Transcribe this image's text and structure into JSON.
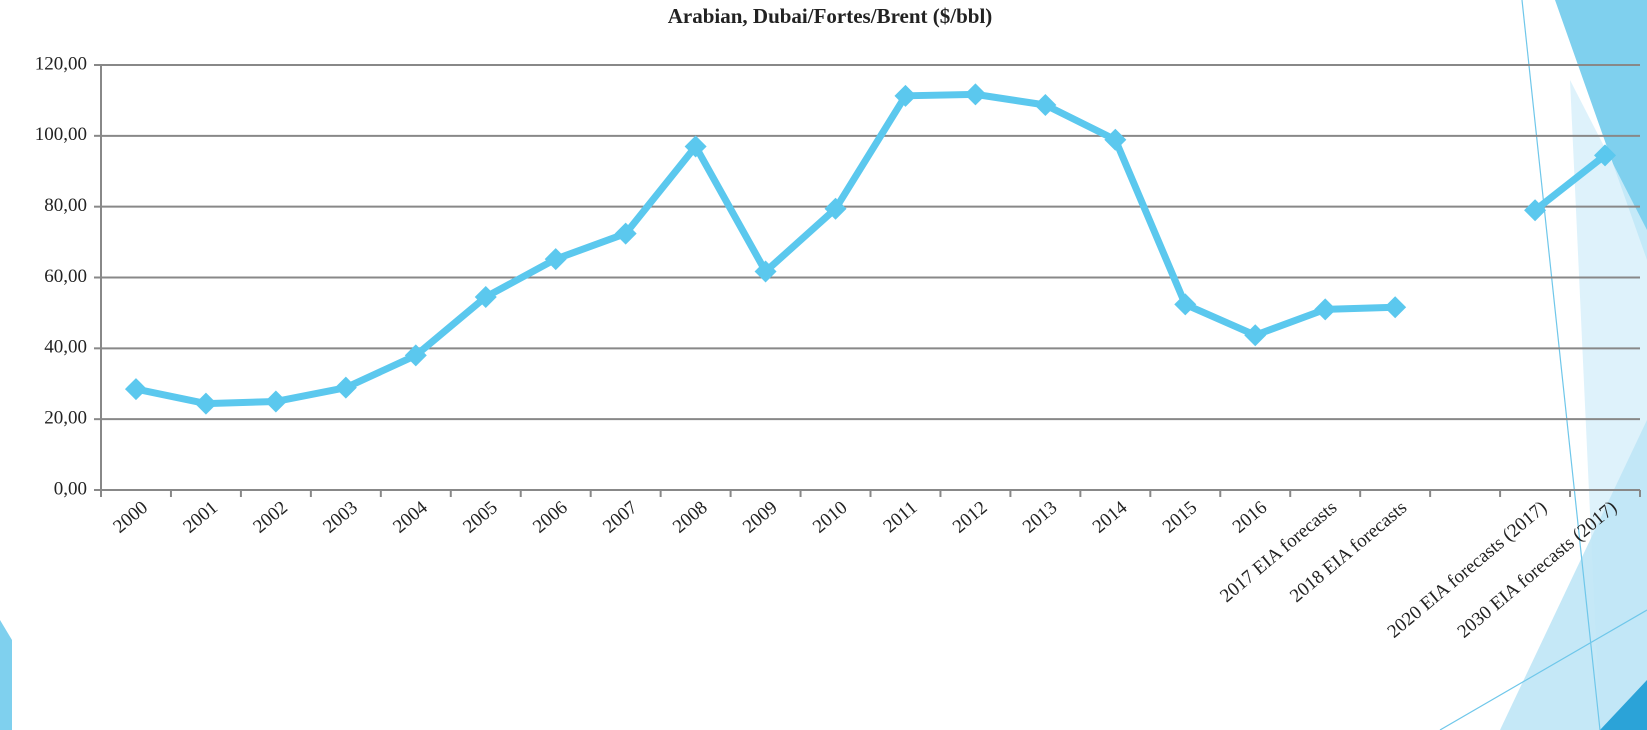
{
  "chart_data": {
    "type": "line",
    "title": "Arabian, Dubai/Fortes/Brent ($/bbl)",
    "categories": [
      "2000",
      "2001",
      "2002",
      "2003",
      "2004",
      "2005",
      "2006",
      "2007",
      "2008",
      "2009",
      "2010",
      "2011",
      "2012",
      "2013",
      "2014",
      "2015",
      "2016",
      "2017 EIA forecasts",
      "2018 EIA forecasts",
      null,
      "2020 EIA forecasts (2017)",
      "2030 EIA forecasts (2017)"
    ],
    "series": [
      {
        "color": "#5bc8ee",
        "values": [
          28.5,
          24.4,
          25.0,
          28.9,
          38.0,
          54.5,
          65.2,
          72.4,
          97.0,
          61.7,
          79.4,
          111.3,
          111.7,
          108.7,
          98.9,
          52.4,
          43.7,
          51.0,
          51.6,
          null,
          79.0,
          94.5
        ]
      }
    ],
    "ylim": [
      0,
      120
    ],
    "yticks": [
      {
        "value": 0,
        "label": "0,00"
      },
      {
        "value": 20,
        "label": "20,00"
      },
      {
        "value": 40,
        "label": "40,00"
      },
      {
        "value": 60,
        "label": "60,00"
      },
      {
        "value": 80,
        "label": "80,00"
      },
      {
        "value": 100,
        "label": "100,00"
      },
      {
        "value": 120,
        "label": "120,00"
      }
    ],
    "grid": true
  }
}
